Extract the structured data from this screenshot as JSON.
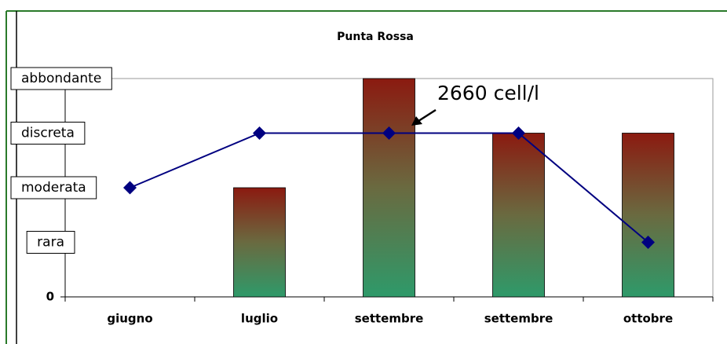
{
  "chart_data": {
    "type": "bar",
    "title": "Punta Rossa",
    "categories": [
      "giugno",
      "luglio",
      "settembre",
      "settembre",
      "ottobre"
    ],
    "series": [
      {
        "type": "bar",
        "color": "#8b1a10",
        "values": [
          0,
          2,
          4,
          3,
          3
        ]
      },
      {
        "type": "line",
        "color": "#000080",
        "values": [
          2,
          3,
          3,
          3,
          1
        ]
      }
    ],
    "ylim": [
      0,
      4
    ],
    "yticks": [
      0,
      {
        "value": 1,
        "label": "rara"
      },
      {
        "value": 2,
        "label": "moderata"
      },
      {
        "value": 3,
        "label": "discreta"
      },
      {
        "value": 4,
        "label": "abbondante"
      }
    ],
    "annotation": "2660 cell/l"
  }
}
